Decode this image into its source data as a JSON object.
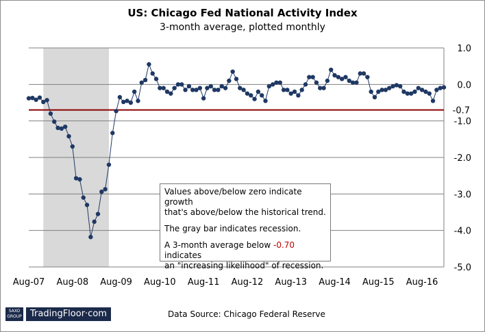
{
  "chart_data": {
    "type": "line",
    "title": "US: Chicago Fed National Activity Index",
    "subtitle": "3-month average, plotted monthly",
    "x_start": "Aug-07",
    "x_tick_labels": [
      "Aug-07",
      "Aug-08",
      "Aug-09",
      "Aug-10",
      "Aug-11",
      "Aug-12",
      "Aug-13",
      "Aug-14",
      "Aug-15",
      "Aug-16"
    ],
    "y_tick_labels": [
      "1.0",
      "0.0",
      "-1.0",
      "-2.0",
      "-3.0",
      "-4.0",
      "-5.0"
    ],
    "ylim": [
      -5.0,
      1.0
    ],
    "threshold": {
      "value": -0.7,
      "label": "-0.7",
      "color": "#8b0000"
    },
    "recession": {
      "start": "Dec-07",
      "end": "Jun-09",
      "color": "#d9d9d9"
    },
    "series": [
      {
        "color": "#1f3864",
        "values": [
          -0.38,
          -0.37,
          -0.42,
          -0.36,
          -0.48,
          -0.43,
          -0.8,
          -1.02,
          -1.19,
          -1.21,
          -1.16,
          -1.42,
          -1.7,
          -2.57,
          -2.6,
          -3.1,
          -3.3,
          -4.18,
          -3.76,
          -3.55,
          -2.94,
          -2.87,
          -2.2,
          -1.33,
          -0.73,
          -0.35,
          -0.48,
          -0.45,
          -0.5,
          -0.2,
          -0.45,
          0.05,
          0.12,
          0.55,
          0.3,
          0.15,
          -0.1,
          -0.1,
          -0.2,
          -0.25,
          -0.1,
          0.0,
          0.0,
          -0.15,
          -0.05,
          -0.15,
          -0.15,
          -0.1,
          -0.38,
          -0.1,
          -0.05,
          -0.15,
          -0.15,
          -0.05,
          -0.1,
          0.1,
          0.35,
          0.15,
          -0.1,
          -0.15,
          -0.25,
          -0.3,
          -0.4,
          -0.2,
          -0.3,
          -0.45,
          -0.05,
          0.0,
          0.05,
          0.05,
          -0.15,
          -0.15,
          -0.25,
          -0.2,
          -0.3,
          -0.15,
          0.0,
          0.2,
          0.2,
          0.05,
          -0.1,
          -0.1,
          0.1,
          0.4,
          0.25,
          0.2,
          0.15,
          0.2,
          0.1,
          0.05,
          0.05,
          0.3,
          0.3,
          0.2,
          -0.2,
          -0.35,
          -0.2,
          -0.15,
          -0.15,
          -0.1,
          -0.05,
          -0.02,
          -0.05,
          -0.2,
          -0.25,
          -0.25,
          -0.2,
          -0.1,
          -0.15,
          -0.2,
          -0.25,
          -0.45,
          -0.15,
          -0.1,
          -0.08
        ]
      }
    ]
  },
  "annotation": {
    "line1": "Values above/below zero indicate growth",
    "line2": "that's above/below  the historical trend.",
    "line3": "The gray bar indicates recession.",
    "line4a": "A 3-month average below ",
    "line4b": "-0.70",
    "line4c": " indicates",
    "line5": "an \"increasing likelihood\" of recession."
  },
  "footer": {
    "logo_top": "SAXO",
    "logo_bottom": "GROUP",
    "brand": "TradingFloor·com",
    "source": "Data Source: Chicago Federal Reserve"
  }
}
